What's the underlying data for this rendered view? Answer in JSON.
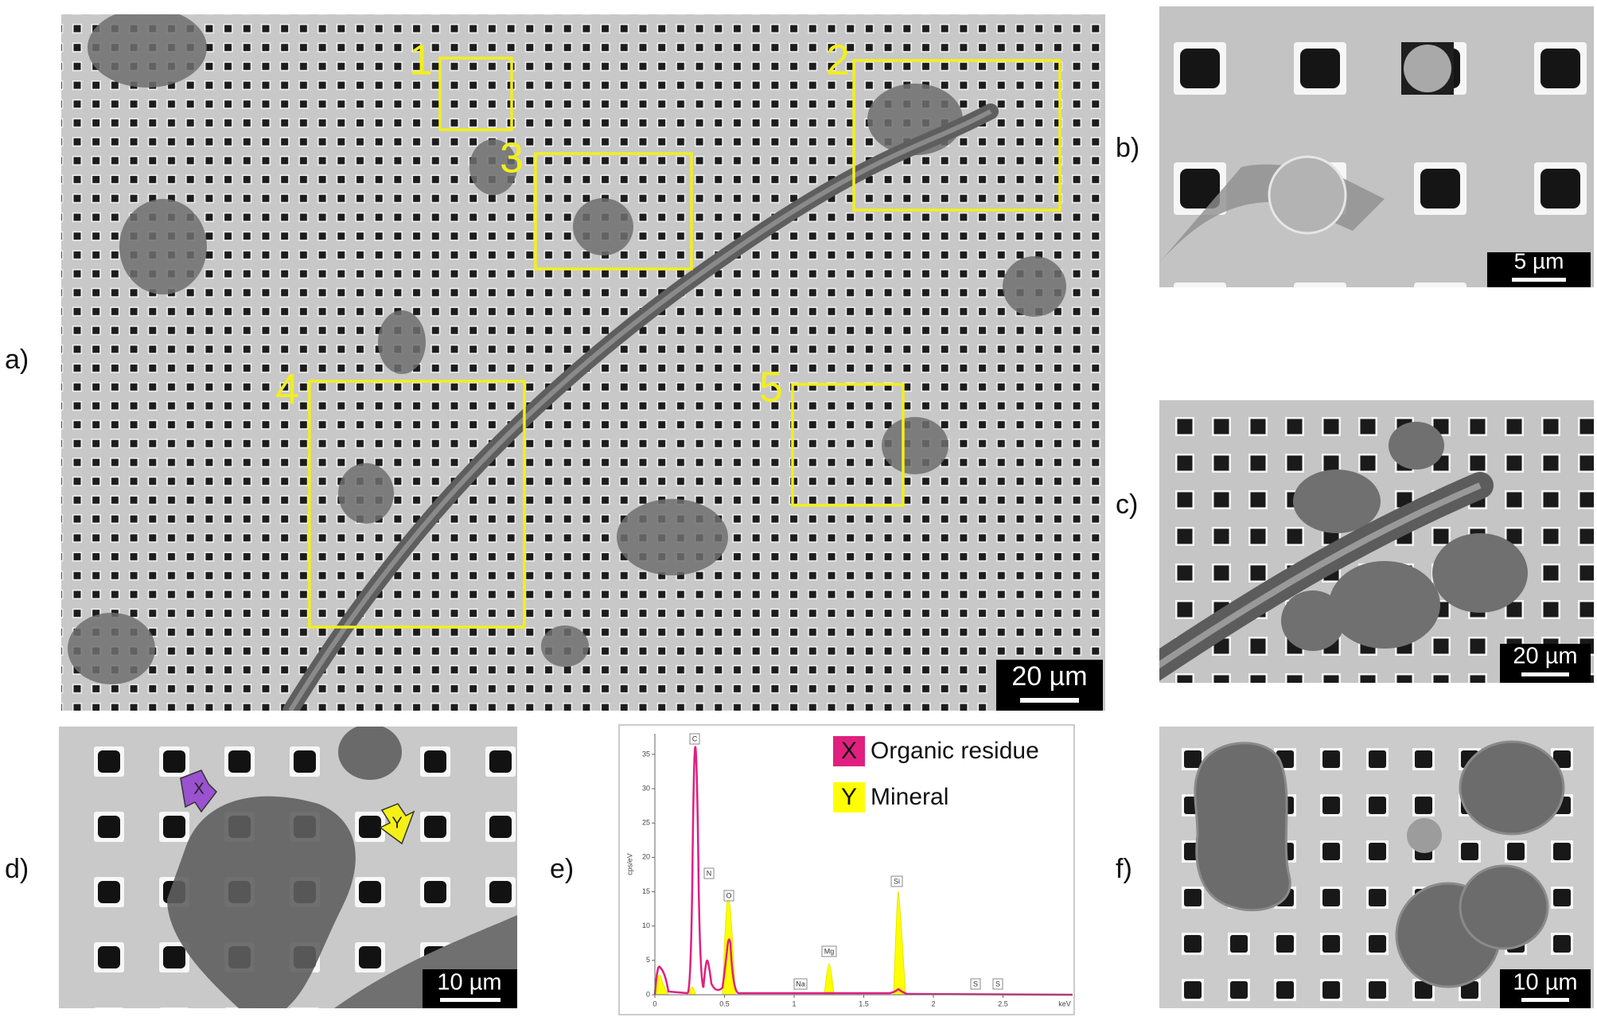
{
  "panels": {
    "a": {
      "label": "a)",
      "regions": [
        "1",
        "2",
        "3",
        "4",
        "5"
      ],
      "scale_bar": "20 µm"
    },
    "b": {
      "label": "b)",
      "scale_bar": "5 µm"
    },
    "c": {
      "label": "c)",
      "scale_bar": "20 µm"
    },
    "d": {
      "label": "d)",
      "scale_bar": "10 µm",
      "markers": [
        "X",
        "Y"
      ]
    },
    "e": {
      "label": "e)",
      "legend": [
        {
          "marker": "X",
          "name": "Organic residue",
          "color": "#e0207f"
        },
        {
          "marker": "Y",
          "name": "Mineral",
          "color": "#ffff00"
        }
      ],
      "elements": [
        "C",
        "N",
        "O",
        "Na",
        "Mg",
        "Si",
        "S",
        "S"
      ],
      "xlim": [
        0,
        3
      ],
      "xticks": [
        0,
        0.5,
        1,
        1.5,
        2,
        2.5
      ],
      "x_unit": "keV",
      "ylim": [
        0,
        38
      ],
      "yticks": [
        0,
        5,
        10,
        15,
        20,
        25,
        30,
        35
      ],
      "y_unit": "cps/eV"
    },
    "f": {
      "label": "f)",
      "scale_bar": "10 µm"
    }
  }
}
